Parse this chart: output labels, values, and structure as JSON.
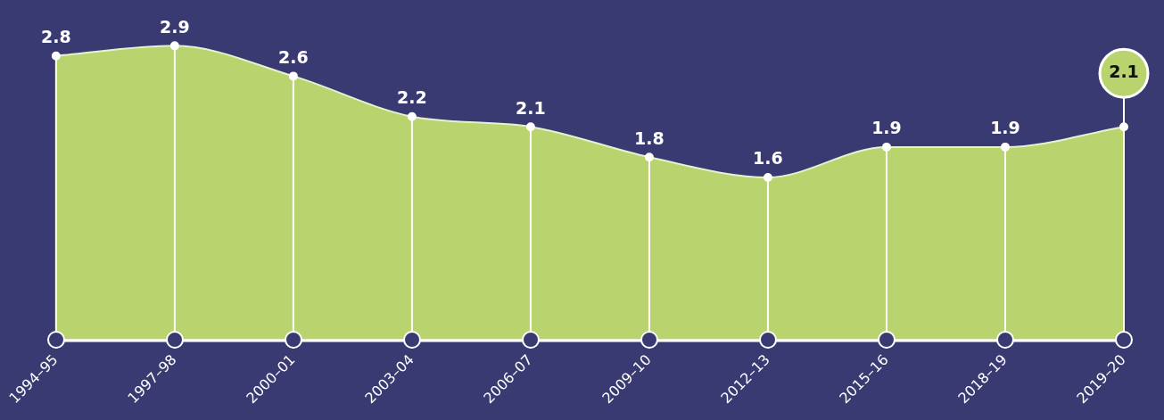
{
  "chart_data": {
    "type": "area",
    "categories": [
      "1994–95",
      "1997–98",
      "2000–01",
      "2003–04",
      "2006–07",
      "2009–10",
      "2012–13",
      "2015–16",
      "2018–19",
      "2019–20"
    ],
    "series": [
      {
        "color": "#b9d36f",
        "values": [
          2.8,
          2.9,
          2.6,
          2.2,
          2.1,
          1.8,
          1.6,
          1.9,
          1.9,
          2.1
        ]
      }
    ],
    "tick_labels": "x",
    "data_labels": true,
    "marker": "circle",
    "grid": "x",
    "legend": false
  }
}
